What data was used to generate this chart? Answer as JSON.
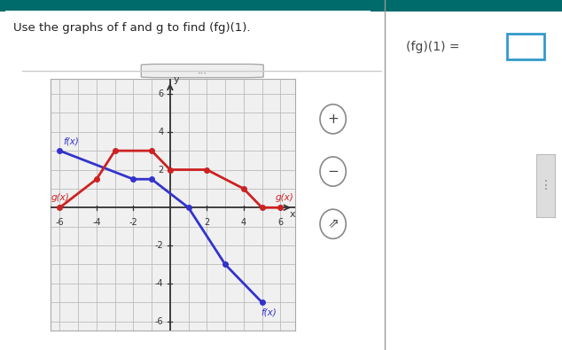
{
  "title_text": "Use the graphs of f and g to find (fg)(1).",
  "answer_text": "(fg)(1) =",
  "bg_color": "#ffffff",
  "graph_bg": "#f0f0f0",
  "grid_color": "#bbbbbb",
  "axis_range": [
    -6,
    6,
    -6,
    6
  ],
  "f_color": "#3333cc",
  "g_color": "#cc2222",
  "f_points": [
    [
      -6,
      3
    ],
    [
      -2,
      1.5
    ],
    [
      -1,
      1.5
    ],
    [
      1,
      0
    ],
    [
      3,
      -3
    ],
    [
      5,
      -5
    ]
  ],
  "g_points": [
    [
      -6,
      0
    ],
    [
      -4,
      1.5
    ],
    [
      -3,
      3
    ],
    [
      -1,
      3
    ],
    [
      0,
      2
    ],
    [
      2,
      2
    ],
    [
      4,
      1
    ],
    [
      5,
      0
    ],
    [
      6,
      0
    ]
  ],
  "f_label": "f(x)",
  "g_label": "g(x)",
  "xlabel": "x",
  "ylabel": "y",
  "marker_size": 4,
  "line_width": 2.0,
  "tick_values": [
    -6,
    -4,
    -2,
    2,
    4,
    6
  ],
  "teal_color": "#006b6b",
  "divider_color": "#999999",
  "box_color": "#3399cc",
  "icon_color": "#888888"
}
